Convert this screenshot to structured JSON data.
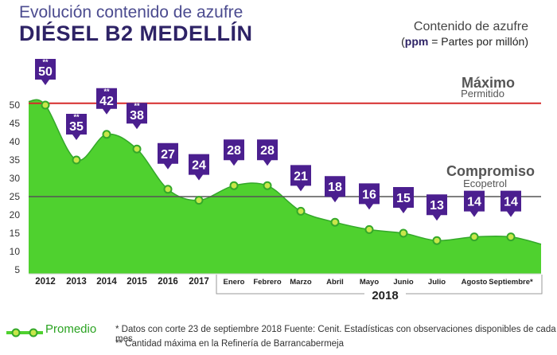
{
  "header": {
    "title_line1": "Evolución contenido de azufre",
    "title_line2": "DIÉSEL B2 MEDELLÍN",
    "unit_line1": "Contenido de azufre",
    "unit_abbr": "ppm",
    "unit_rest": " = Partes por millón)",
    "unit_open": "("
  },
  "references": {
    "max_label": "Máximo",
    "max_sublabel": "Permitido",
    "max_value": 50.5,
    "commit_label": "Compromiso",
    "commit_sublabel": "Ecopetrol",
    "commit_value": 25
  },
  "legend": {
    "label": "Promedio"
  },
  "notes": {
    "note1": "* Datos con corte 23 de septiembre 2018   Fuente: Cenit. Estadísticas con observaciones disponibles de cada mes",
    "note2": "** Cantidad máxima en la Refinería de Barrancabermeja"
  },
  "chart_data": {
    "type": "area",
    "categories": [
      "2012",
      "2013",
      "2014",
      "2015",
      "2016",
      "2017",
      "Enero",
      "Febrero",
      "Marzo",
      "Abril",
      "Mayo",
      "Junio",
      "Julio",
      "Agosto",
      "Septiembre*"
    ],
    "group_label": "2018",
    "y_ticks": [
      5,
      10,
      15,
      20,
      25,
      30,
      35,
      40,
      45,
      50
    ],
    "ylim": [
      5,
      52
    ],
    "series": [
      {
        "name": "Promedio",
        "values": [
          50,
          35,
          42,
          38,
          27,
          24,
          28,
          28,
          21,
          18,
          16,
          15,
          13,
          14,
          14
        ],
        "labels": [
          "50",
          "35",
          "42",
          "38",
          "27",
          "24",
          "28",
          "28",
          "21",
          "18",
          "16",
          "15",
          "13",
          "14",
          "14"
        ],
        "double_star": [
          true,
          true,
          true,
          true,
          false,
          false,
          false,
          false,
          false,
          false,
          false,
          false,
          false,
          false,
          false
        ]
      }
    ],
    "area_start_value": 51,
    "area_end_value": 12,
    "colors": {
      "area": "#4fd12f",
      "area_edge": "#34a82a",
      "badge": "#4b1f8f",
      "max_line": "#d62b2b",
      "commit_line": "#555555",
      "point_fill": "#c8e64a"
    },
    "grid": false
  }
}
